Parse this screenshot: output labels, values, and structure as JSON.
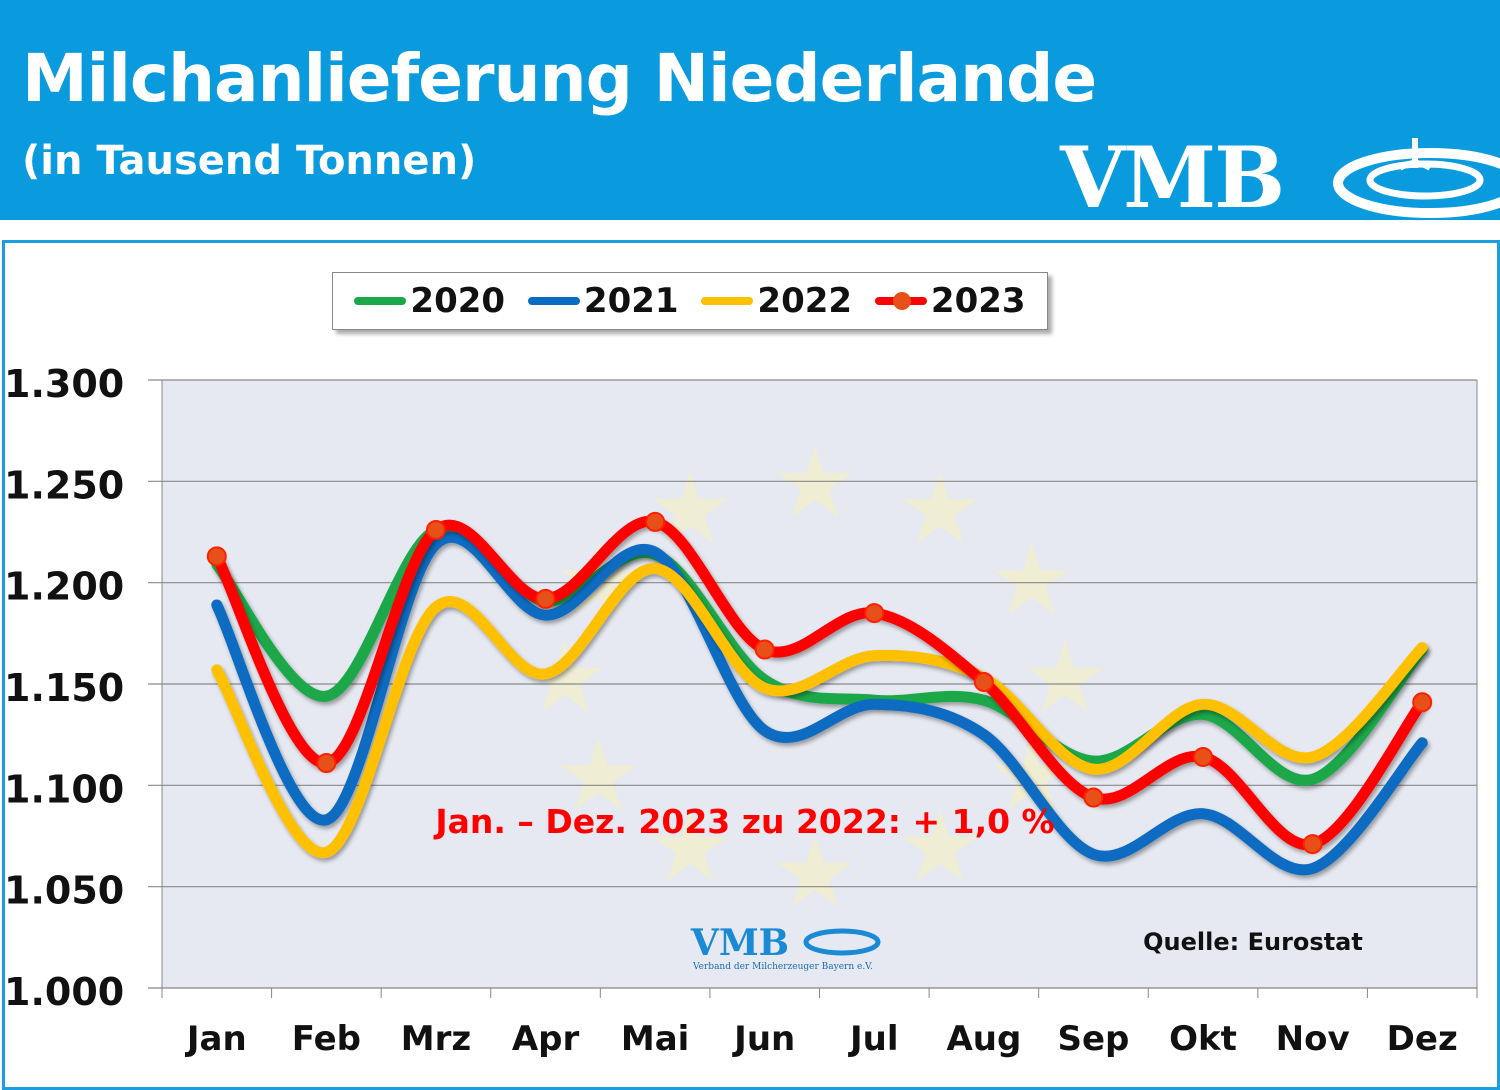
{
  "header": {
    "title": "Milchanlieferung Niederlande",
    "subtitle": "(in Tausend Tonnen)",
    "logo_text": "VMB"
  },
  "chart_data": {
    "type": "line",
    "title": "Milchanlieferung Niederlande",
    "subtitle": "(in Tausend Tonnen)",
    "categories": [
      "Jan",
      "Feb",
      "Mrz",
      "Apr",
      "Mai",
      "Jun",
      "Jul",
      "Aug",
      "Sep",
      "Okt",
      "Nov",
      "Dez"
    ],
    "ylim": [
      1000,
      1300
    ],
    "yticks": [
      1000,
      1050,
      1100,
      1150,
      1200,
      1250,
      1300
    ],
    "ytick_labels": [
      "1.000",
      "1.050",
      "1.100",
      "1.150",
      "1.200",
      "1.250",
      "1.300"
    ],
    "grid": true,
    "legend_position": "top-center",
    "series": [
      {
        "name": "2020",
        "color": "#1aa84a",
        "values": [
          1209,
          1144,
          1226,
          1191,
          1214,
          1152,
          1142,
          1142,
          1112,
          1135,
          1103,
          1167
        ]
      },
      {
        "name": "2021",
        "color": "#0a6cc2",
        "values": [
          1189,
          1083,
          1219,
          1184,
          1215,
          1127,
          1140,
          1125,
          1066,
          1086,
          1059,
          1121
        ]
      },
      {
        "name": "2022",
        "color": "#ffc000",
        "values": [
          1157,
          1067,
          1188,
          1155,
          1207,
          1148,
          1164,
          1153,
          1108,
          1140,
          1114,
          1168
        ]
      },
      {
        "name": "2023",
        "color": "#ff0000",
        "marker_color": "#e8501a",
        "values": [
          1213,
          1111,
          1226,
          1192,
          1230,
          1167,
          1185,
          1151,
          1094,
          1114,
          1071,
          1141
        ]
      }
    ],
    "annotation": "Jan. – Dez. 2023 zu 2022: + 1,0 %",
    "source": "Quelle: Eurostat",
    "watermark_logo": "VMB",
    "watermark_caption": "Verband der Milcherzeuger Bayern e.V."
  }
}
